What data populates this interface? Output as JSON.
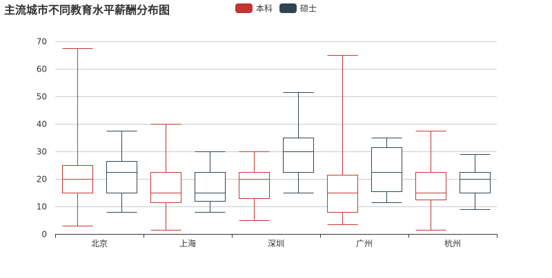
{
  "chart_data": {
    "type": "boxplot",
    "title": "主流城市不同教育水平薪酬分布图",
    "categories": [
      "北京",
      "上海",
      "深圳",
      "广州",
      "杭州"
    ],
    "series": [
      {
        "name": "本科",
        "color": "#c23531",
        "legendColor": "#c23531",
        "boxes": [
          {
            "min": 3,
            "q1": 15,
            "median": 20,
            "q3": 25,
            "max": 67.5
          },
          {
            "min": 1.5,
            "q1": 11.5,
            "median": 15,
            "q3": 22.5,
            "max": 40
          },
          {
            "min": 5,
            "q1": 13,
            "median": 20,
            "q3": 22.5,
            "max": 30
          },
          {
            "min": 3.5,
            "q1": 8,
            "median": 15,
            "q3": 21.5,
            "max": 65
          },
          {
            "min": 1.5,
            "q1": 12.5,
            "median": 15,
            "q3": 22.5,
            "max": 37.5
          }
        ]
      },
      {
        "name": "硕士",
        "color": "#2f4554",
        "legendColor": "#2f4554",
        "boxes": [
          {
            "min": 8,
            "q1": 15,
            "median": 22.5,
            "q3": 26.5,
            "max": 37.5
          },
          {
            "min": 8,
            "q1": 12,
            "median": 15,
            "q3": 22.5,
            "max": 30
          },
          {
            "min": 15,
            "q1": 22.5,
            "median": 30,
            "q3": 35,
            "max": 51.5
          },
          {
            "min": 11.5,
            "q1": 15.5,
            "median": 22.5,
            "q3": 31.5,
            "max": 35
          },
          {
            "min": 9,
            "q1": 15,
            "median": 20,
            "q3": 22.5,
            "max": 29
          }
        ]
      }
    ],
    "ylim": [
      0,
      70
    ],
    "yticks": [
      0,
      10,
      20,
      30,
      40,
      50,
      60,
      70
    ],
    "grid": true,
    "legend_position": "top"
  }
}
